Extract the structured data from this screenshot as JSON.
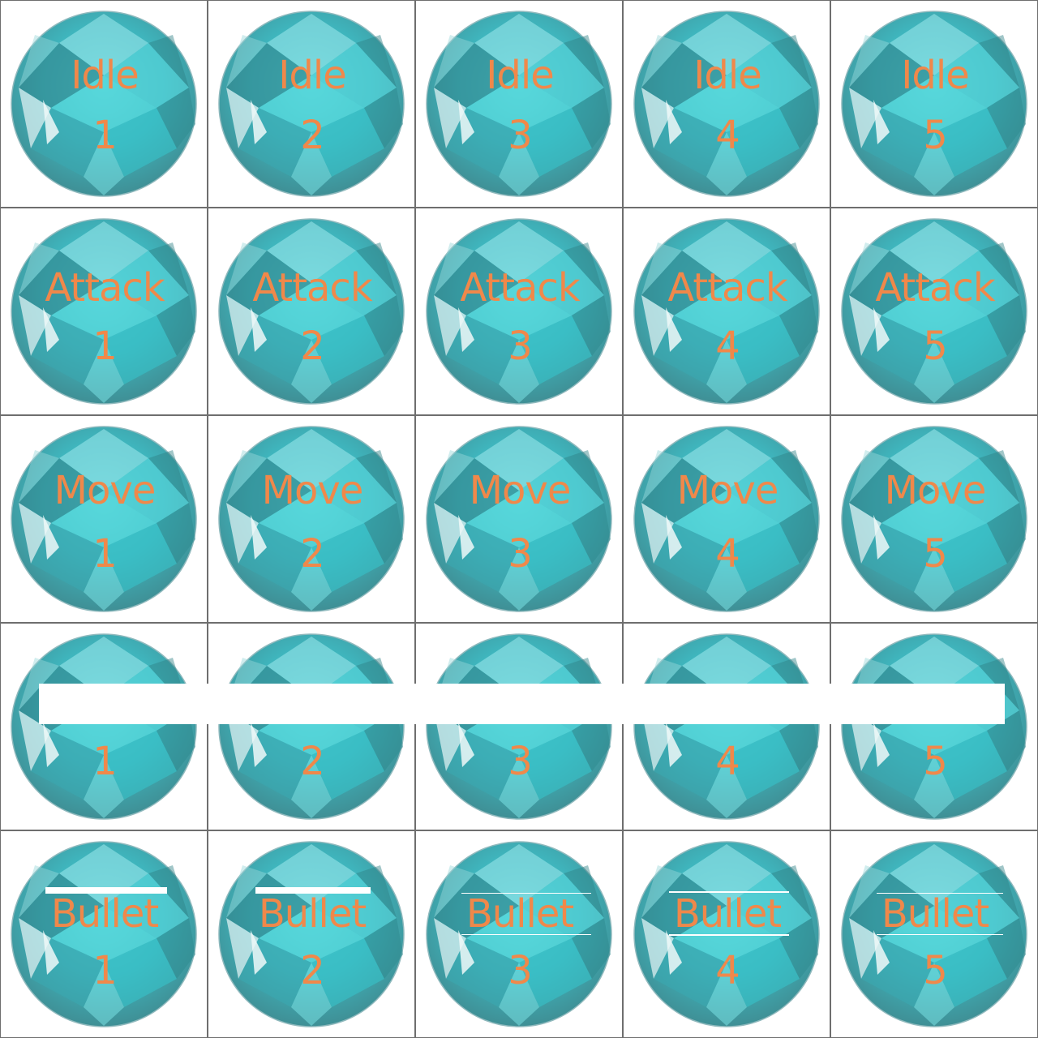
{
  "sheet": {
    "rows": [
      {
        "name": "Idle",
        "frames": [
          "1",
          "2",
          "3",
          "4",
          "5"
        ]
      },
      {
        "name": "Attack",
        "frames": [
          "1",
          "2",
          "3",
          "4",
          "5"
        ]
      },
      {
        "name": "Move",
        "frames": [
          "1",
          "2",
          "3",
          "4",
          "5"
        ]
      },
      {
        "name": "",
        "frames": [
          "1",
          "2",
          "3",
          "4",
          "5"
        ]
      },
      {
        "name": "Bullet",
        "frames": [
          "1",
          "2",
          "3",
          "4",
          "5"
        ]
      }
    ]
  },
  "colors": {
    "label": "#f0884a",
    "gem_dark": "#3f8f95",
    "gem_mid": "#4fc9cf",
    "gem_light": "#9fe9ec",
    "grid_line": "#6e6e6e"
  },
  "icons": {
    "frame_sprite": "diamond-gem-icon"
  }
}
